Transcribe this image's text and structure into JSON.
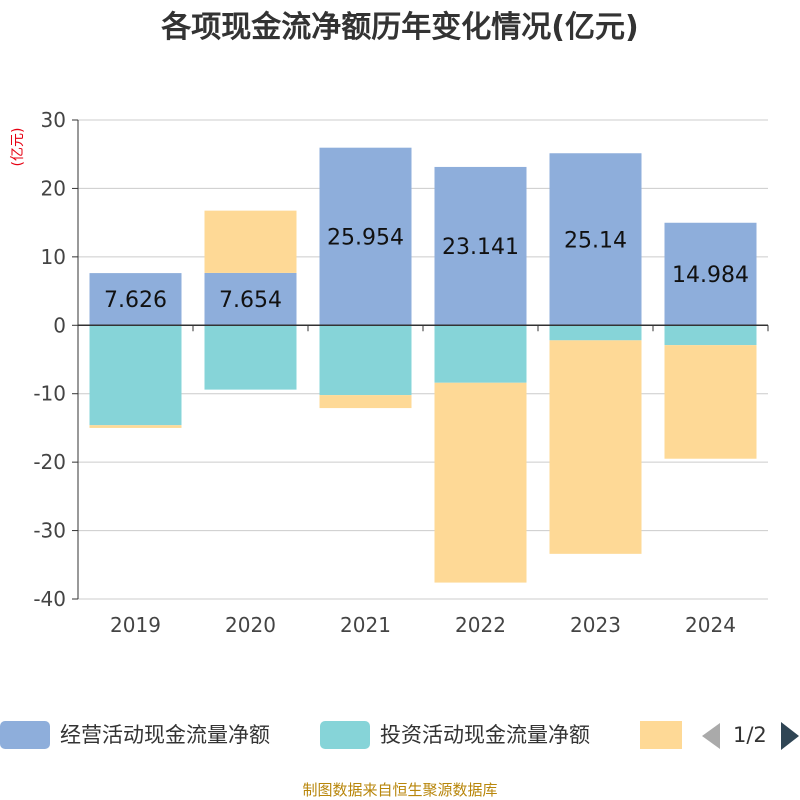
{
  "title": "各项现金流净额历年变化情况(亿元)",
  "source": "制图数据来自恒生聚源数据库",
  "legend": {
    "page_indicator": "1/2"
  },
  "colors": {
    "operating": "#8eaedb",
    "investing": "#86d4d8",
    "financing": "#fed996"
  },
  "icons": {
    "prev": "triangle-left-icon",
    "next": "triangle-right-icon"
  },
  "chart_data": {
    "type": "bar",
    "stacked": true,
    "unit_label": "(亿元)",
    "categories": [
      "2019",
      "2020",
      "2021",
      "2022",
      "2023",
      "2024"
    ],
    "ylim": [
      -40,
      30
    ],
    "yticks": [
      30,
      20,
      10,
      0,
      -10,
      -20,
      -30,
      -40
    ],
    "grid": true,
    "legend_position": "bottom",
    "series": [
      {
        "name": "经营活动现金流量净额",
        "values": [
          7.626,
          7.654,
          25.954,
          23.141,
          25.14,
          14.984
        ],
        "data_labels": [
          "7.626",
          "7.654",
          "25.954",
          "23.141",
          "25.14",
          "14.984"
        ]
      },
      {
        "name": "投资活动现金流量净额",
        "values": [
          -14.6,
          -9.4,
          -10.2,
          -8.4,
          -2.2,
          -2.9
        ]
      },
      {
        "name": "",
        "values": [
          -0.4,
          9.1,
          -1.9,
          -29.2,
          -31.2,
          -16.6
        ]
      }
    ]
  }
}
